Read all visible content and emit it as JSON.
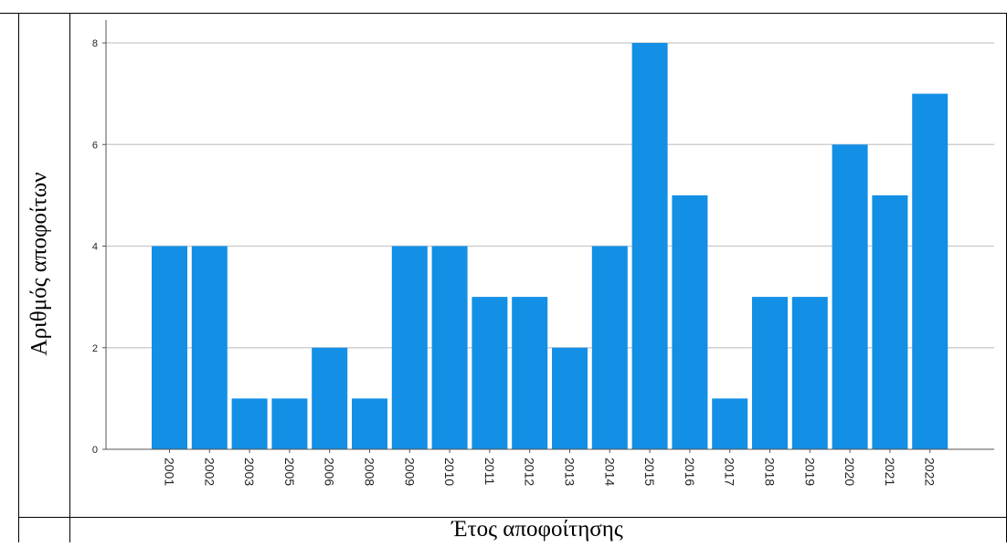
{
  "colors": {
    "bar": "#138fe6",
    "grid": "#d0d0d0",
    "axis": "#555555",
    "table_border": "#000000"
  },
  "chart_data": {
    "type": "bar",
    "categories": [
      "2001",
      "2002",
      "2003",
      "2005",
      "2006",
      "2008",
      "2009",
      "2010",
      "2011",
      "2012",
      "2013",
      "2014",
      "2015",
      "2016",
      "2017",
      "2018",
      "2019",
      "2020",
      "2021",
      "2022"
    ],
    "values": [
      4,
      4,
      1,
      1,
      2,
      1,
      4,
      4,
      3,
      3,
      2,
      4,
      8,
      5,
      1,
      3,
      3,
      6,
      5,
      7
    ],
    "title": "",
    "xlabel": "Έτος αποφοίτησης",
    "ylabel": "Αριθμός αποφοίτων",
    "ylim": [
      0,
      8
    ],
    "yticks": [
      "0",
      "2",
      "4",
      "6",
      "8"
    ],
    "grid": true,
    "legend": "none"
  }
}
